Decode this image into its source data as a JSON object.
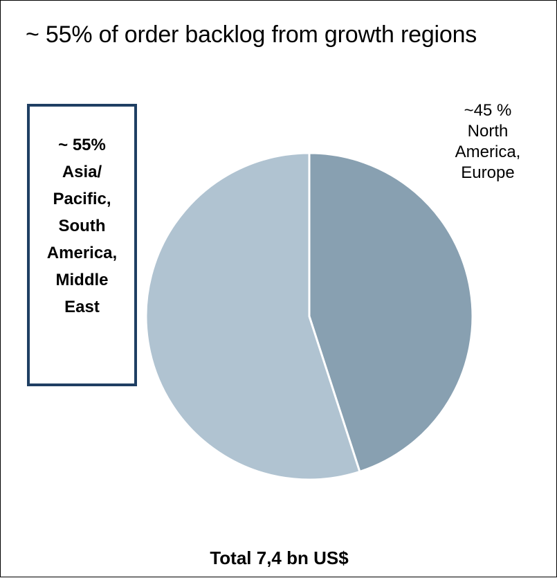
{
  "title": "~ 55% of order backlog from growth regions",
  "left_label_lines": [
    "~ 55%",
    "Asia/",
    "Pacific,",
    "South",
    "America,",
    "Middle",
    "East"
  ],
  "right_label_lines": [
    "~45 %",
    "North",
    "America,",
    "Europe"
  ],
  "total_label": "Total 7,4 bn US$",
  "colors": {
    "slice_growth": "#b0c3d1",
    "slice_north_america_europe": "#88a0b1",
    "box_border": "#1f3f63",
    "slice_separator": "#ffffff"
  },
  "chart_data": {
    "type": "pie",
    "title": "~ 55% of order backlog from growth regions",
    "slices": [
      {
        "label": "North America, Europe",
        "value": 45
      },
      {
        "label": "Asia/Pacific, South America, Middle East",
        "value": 55
      }
    ],
    "start": "12 o'clock",
    "direction": "clockwise",
    "annotation": "Total 7,4 bn US$"
  }
}
